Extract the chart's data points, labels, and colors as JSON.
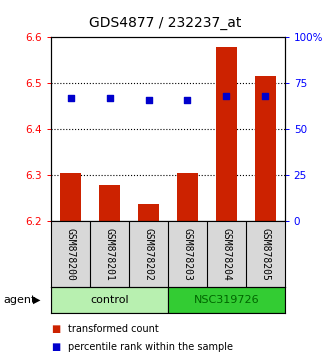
{
  "title": "GDS4877 / 232237_at",
  "samples": [
    "GSM878200",
    "GSM878201",
    "GSM878202",
    "GSM878203",
    "GSM878204",
    "GSM878205"
  ],
  "red_values": [
    6.305,
    6.278,
    6.238,
    6.305,
    6.578,
    6.515
  ],
  "blue_values": [
    67,
    67,
    66,
    66,
    68,
    68
  ],
  "ylim_left": [
    6.2,
    6.6
  ],
  "ylim_right": [
    0,
    100
  ],
  "yticks_left": [
    6.2,
    6.3,
    6.4,
    6.5,
    6.6
  ],
  "yticks_right": [
    0,
    25,
    50,
    75,
    100
  ],
  "ytick_labels_right": [
    "0",
    "25",
    "50",
    "75",
    "100%"
  ],
  "groups": [
    {
      "label": "control",
      "samples": [
        0,
        1,
        2
      ],
      "color": "#b8f0b0"
    },
    {
      "label": "NSC319726",
      "samples": [
        3,
        4,
        5
      ],
      "color": "#33cc33"
    }
  ],
  "bar_color": "#cc2200",
  "dot_color": "#0000cc",
  "bar_bottom": 6.2,
  "legend_items": [
    {
      "color": "#cc2200",
      "label": "transformed count"
    },
    {
      "color": "#0000cc",
      "label": "percentile rank within the sample"
    }
  ],
  "group_label": "agent",
  "bg_color": "#d8d8d8",
  "plot_bg": "#ffffff"
}
